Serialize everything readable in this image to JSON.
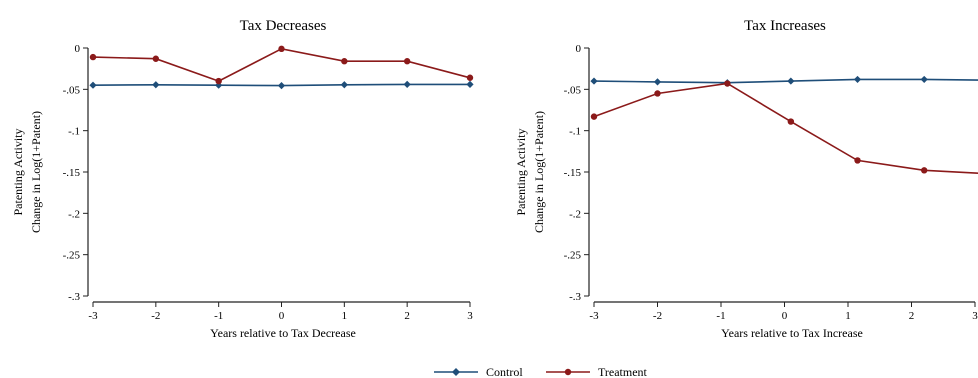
{
  "chart_data": [
    {
      "type": "line",
      "title": "Tax Decreases",
      "xlabel": "Years relative to Tax Decrease",
      "ylabel_line1": "Patenting Activity",
      "ylabel_line2": "Change in Log(1+Patent)",
      "x": [
        -3,
        -2,
        -1,
        0,
        1,
        2,
        3
      ],
      "x_ticks": [
        "-3",
        "-2",
        "-1",
        "0",
        "1",
        "2",
        "3"
      ],
      "y_ticks": [
        0,
        -0.05,
        -0.1,
        -0.15,
        -0.2,
        -0.25,
        -0.3
      ],
      "y_tick_labels": [
        "0",
        "-.05",
        "-.1",
        "-.15",
        "-.2",
        "-.25",
        "-.3"
      ],
      "ylim": [
        -0.3,
        0
      ],
      "xlim": [
        -3,
        3
      ],
      "grid": false,
      "series": [
        {
          "name": "Control",
          "color": "#1f4e79",
          "marker": "diamond",
          "x": [
            -3,
            -2,
            -1,
            0,
            1,
            2,
            3
          ],
          "values": [
            -0.045,
            -0.0445,
            -0.045,
            -0.0455,
            -0.0445,
            -0.044,
            -0.044
          ]
        },
        {
          "name": "Treatment",
          "color": "#8b1a1a",
          "marker": "circle",
          "x": [
            -3,
            -2,
            -1,
            0,
            1,
            2,
            3
          ],
          "values": [
            -0.011,
            -0.013,
            -0.04,
            -0.001,
            -0.016,
            -0.016,
            -0.036
          ]
        }
      ]
    },
    {
      "type": "line",
      "title": "Tax Increases",
      "xlabel": "Years relative to Tax Increase",
      "ylabel_line1": "Patenting Activity",
      "ylabel_line2": "Change in Log(1+Patent)",
      "x": [
        -3,
        -2,
        -1,
        0,
        1,
        2,
        3
      ],
      "x_ticks": [
        "-3",
        "-2",
        "-1",
        "0",
        "1",
        "2",
        "3"
      ],
      "y_ticks": [
        0,
        -0.05,
        -0.1,
        -0.15,
        -0.2,
        -0.25,
        -0.3
      ],
      "y_tick_labels": [
        "0",
        "-.05",
        "-.1",
        "-.15",
        "-.2",
        "-.25",
        "-.3"
      ],
      "ylim": [
        -0.3,
        0
      ],
      "xlim": [
        -3,
        3
      ],
      "grid": false,
      "series": [
        {
          "name": "Control",
          "color": "#1f4e79",
          "marker": "diamond",
          "x": [
            -3,
            -2,
            -0.9,
            0.1,
            1.15,
            2.2,
            3.2
          ],
          "values": [
            -0.04,
            -0.041,
            -0.042,
            -0.04,
            -0.038,
            -0.038,
            -0.039
          ]
        },
        {
          "name": "Treatment",
          "color": "#8b1a1a",
          "marker": "circle",
          "x": [
            -3,
            -2,
            -0.9,
            0.1,
            1.15,
            2.2,
            3.2
          ],
          "values": [
            -0.083,
            -0.055,
            -0.043,
            -0.089,
            -0.136,
            -0.148,
            -0.152
          ]
        }
      ]
    }
  ],
  "legend": {
    "placement": "bottom-center",
    "items": [
      {
        "label": "Control",
        "color": "#1f4e79",
        "marker": "diamond"
      },
      {
        "label": "Treatment",
        "color": "#8b1a1a",
        "marker": "circle"
      }
    ]
  }
}
